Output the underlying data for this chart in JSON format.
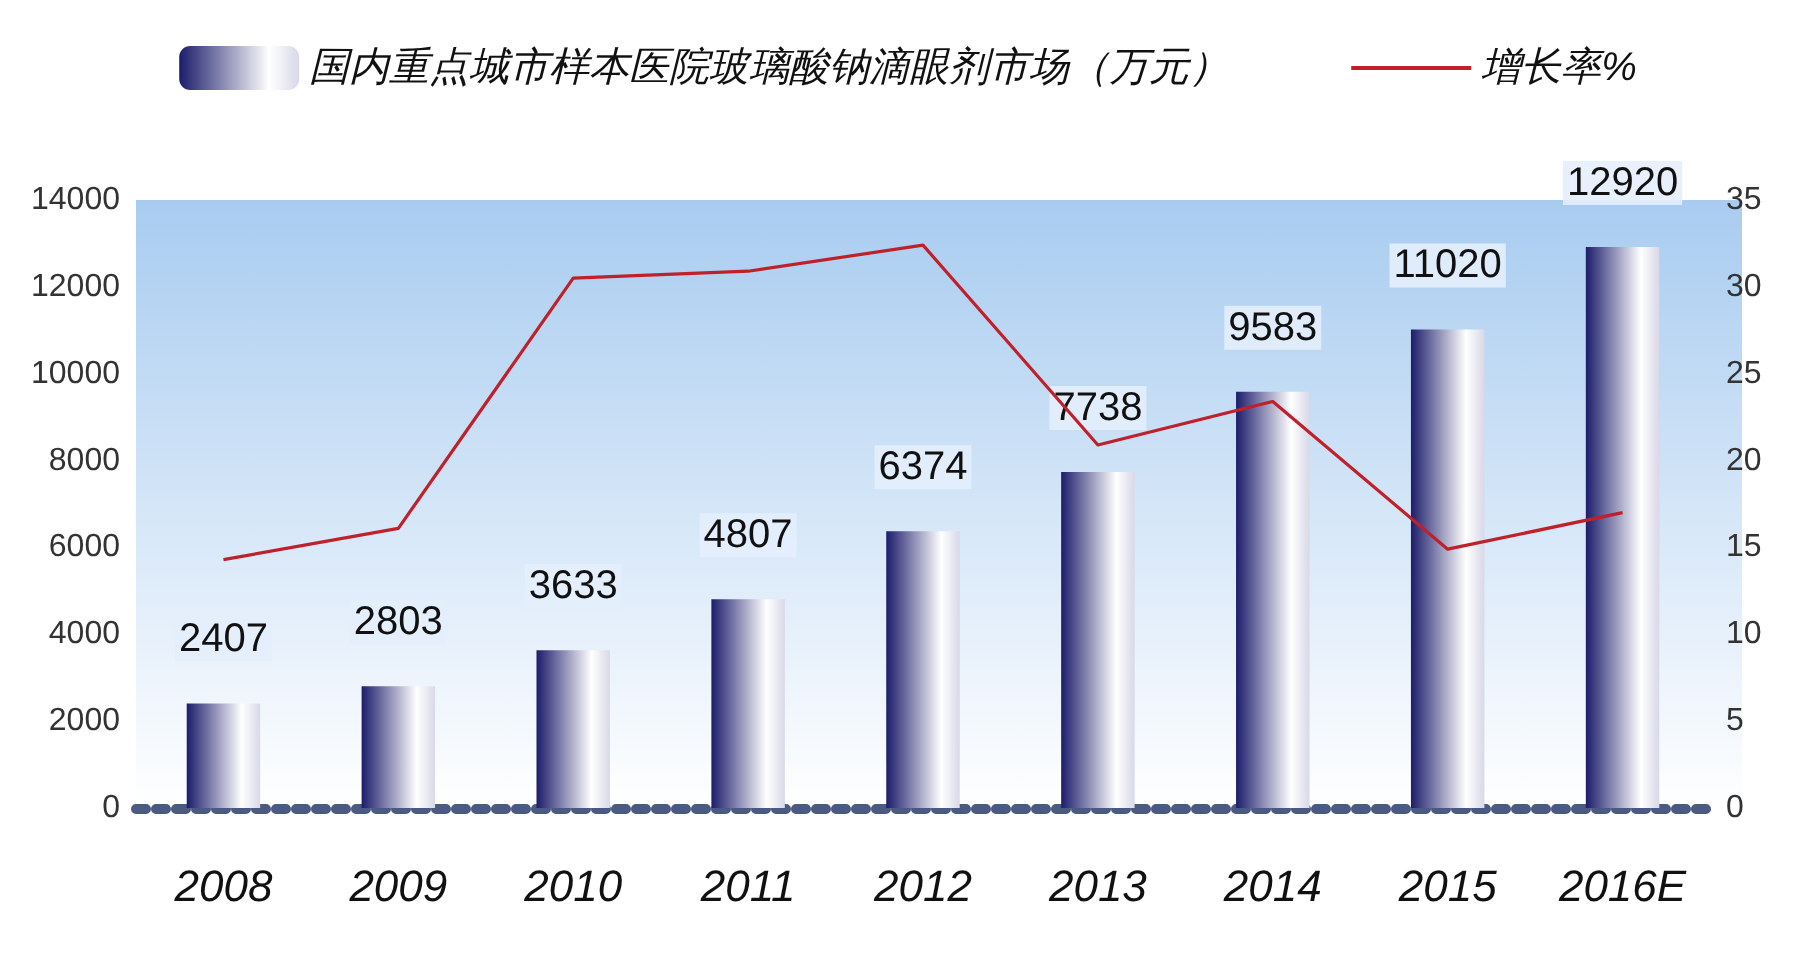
{
  "chart_data": {
    "type": "bar",
    "categories": [
      "2008",
      "2009",
      "2010",
      "2011",
      "2012",
      "2013",
      "2014",
      "2015",
      "2016E"
    ],
    "series": [
      {
        "name": "国内重点城市样本医院玻璃酸钠滴眼剂市场（万元）",
        "color": "#1c1c6b",
        "values": [
          2407,
          2803,
          3633,
          4807,
          6374,
          7738,
          9583,
          11020,
          12920
        ],
        "value_labels": [
          "2407",
          "2803",
          "3633",
          "4807",
          "6374",
          "7738",
          "9583",
          "11020",
          "12920"
        ]
      },
      {
        "name": "增长率%",
        "type": "line",
        "axis": "y2",
        "color": "#c0202a",
        "values": [
          14.3,
          16.1,
          30.5,
          30.9,
          32.4,
          20.9,
          23.4,
          14.9,
          17.0
        ]
      }
    ],
    "ylim": [
      0,
      14000
    ],
    "yticks": [
      0,
      2000,
      4000,
      6000,
      8000,
      10000,
      12000,
      14000
    ],
    "y2lim": [
      0,
      35
    ],
    "y2ticks": [
      0,
      5,
      10,
      15,
      20,
      25,
      30,
      35
    ],
    "legend": "top",
    "grid": false,
    "marker": "none"
  }
}
